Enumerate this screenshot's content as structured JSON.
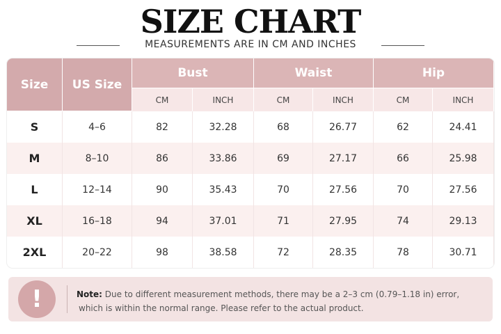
{
  "header": {
    "title": "SIZE CHART",
    "subtitle": "MEASUREMENTS ARE IN CM AND INCHES"
  },
  "table": {
    "columns": [
      "Size",
      "US Size"
    ],
    "groups": [
      "Bust",
      "Waist",
      "Hip"
    ],
    "units": [
      "CM",
      "INCH"
    ],
    "rows": [
      [
        "S",
        "4–6",
        82,
        32.28,
        68,
        26.77,
        62,
        24.41
      ],
      [
        "M",
        "8–10",
        86,
        33.86,
        69,
        27.17,
        66,
        25.98
      ],
      [
        "L",
        "12–14",
        90,
        35.43,
        70,
        27.56,
        70,
        27.56
      ],
      [
        "XL",
        "16–18",
        94,
        37.01,
        71,
        27.95,
        74,
        29.13
      ],
      [
        "2XL",
        "20–22",
        98,
        38.58,
        72,
        28.35,
        78,
        30.71
      ]
    ]
  },
  "note": {
    "label": "Note:",
    "lines": [
      "Due to different measurement methods, there may be a 2–3 cm (0.79–1.18 in) error,",
      "which is within the normal range. Please refer to the actual product."
    ]
  }
}
